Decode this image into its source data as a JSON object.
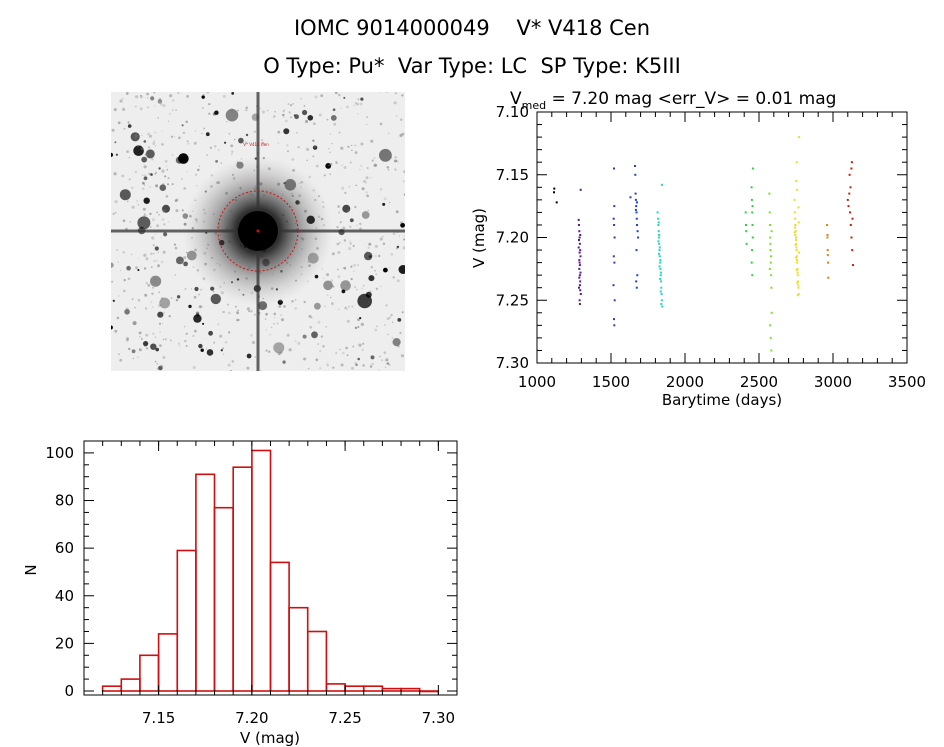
{
  "header": {
    "line1": "IOMC 9014000049    V* V418 Cen",
    "line2": "O Type: Pu*  Var Type: LC  SP Type: K5III"
  },
  "stamp": {
    "target_label": "V* V418 Cen"
  },
  "chart_data": [
    {
      "type": "scatter",
      "title_prefix": "V",
      "title_sub": "med",
      "title_rest": " = 7.20 mag <err_V> = 0.01 mag",
      "xlabel": "Barytime (days)",
      "ylabel": "V (mag)",
      "xlim": [
        1000,
        3500
      ],
      "ylim": [
        7.3,
        7.1
      ],
      "y_inverted": true,
      "xticks": [
        "1000",
        "1500",
        "2000",
        "2500",
        "3000",
        "3500"
      ],
      "yticks": [
        "7.10",
        "7.15",
        "7.20",
        "7.25",
        "7.30"
      ],
      "grid": false,
      "series": [
        {
          "color": "#000000",
          "x": [
            1115,
            1117,
            1133
          ],
          "y": [
            7.164,
            7.161,
            7.172
          ]
        },
        {
          "color": "#5a1a9a",
          "x": [
            1282,
            1284,
            1286,
            1288,
            1290,
            1292,
            1294,
            1288,
            1286,
            1290,
            1292,
            1284,
            1296,
            1288,
            1290,
            1286,
            1282,
            1294,
            1292,
            1290,
            1288,
            1286,
            1284,
            1292,
            1290,
            1295
          ],
          "y": [
            7.186,
            7.19,
            7.195,
            7.2,
            7.205,
            7.21,
            7.215,
            7.22,
            7.225,
            7.23,
            7.235,
            7.24,
            7.245,
            7.25,
            7.253,
            7.218,
            7.208,
            7.228,
            7.198,
            7.238,
            7.212,
            7.232,
            7.202,
            7.242,
            7.222,
            7.162
          ]
        },
        {
          "color": "#4b2fb0",
          "x": [
            1520,
            1522,
            1518,
            1521,
            1524,
            1519,
            1523,
            1517,
            1525,
            1520,
            1522
          ],
          "y": [
            7.145,
            7.175,
            7.185,
            7.19,
            7.2,
            7.215,
            7.22,
            7.238,
            7.25,
            7.265,
            7.27
          ]
        },
        {
          "color": "#2040d0",
          "x": [
            1632,
            1662,
            1664,
            1666,
            1668,
            1670,
            1672,
            1674,
            1676,
            1680,
            1683,
            1672,
            1678,
            1670,
            1674,
            1668,
            1676
          ],
          "y": [
            7.168,
            7.143,
            7.15,
            7.165,
            7.17,
            7.175,
            7.18,
            7.185,
            7.19,
            7.195,
            7.2,
            7.21,
            7.23,
            7.235,
            7.24,
            7.178,
            7.172
          ]
        },
        {
          "color": "#20d8c0",
          "x": [
            1815,
            1818,
            1820,
            1822,
            1824,
            1826,
            1828,
            1830,
            1832,
            1834,
            1836,
            1838,
            1840,
            1842,
            1844,
            1846,
            1820,
            1824,
            1828,
            1832,
            1836,
            1840,
            1844,
            1826,
            1830,
            1834,
            1838,
            1822
          ],
          "y": [
            7.18,
            7.185,
            7.19,
            7.195,
            7.2,
            7.205,
            7.21,
            7.215,
            7.22,
            7.225,
            7.23,
            7.235,
            7.24,
            7.245,
            7.25,
            7.255,
            7.203,
            7.213,
            7.223,
            7.233,
            7.243,
            7.253,
            7.158,
            7.198,
            7.208,
            7.218,
            7.228,
            7.188
          ]
        },
        {
          "color": "#30d040",
          "x": [
            2410,
            2412,
            2414,
            2416,
            2450,
            2452,
            2454,
            2456,
            2458,
            2453,
            2451,
            2455,
            2457,
            2459
          ],
          "y": [
            7.18,
            7.19,
            7.195,
            7.205,
            7.16,
            7.17,
            7.18,
            7.19,
            7.2,
            7.21,
            7.22,
            7.23,
            7.175,
            7.145
          ]
        },
        {
          "color": "#80e020",
          "x": [
            2570,
            2572,
            2574,
            2576,
            2578,
            2580,
            2582,
            2584,
            2586,
            2575,
            2579,
            2583,
            2577,
            2581,
            2585,
            2573
          ],
          "y": [
            7.165,
            7.18,
            7.19,
            7.2,
            7.21,
            7.22,
            7.23,
            7.24,
            7.26,
            7.27,
            7.28,
            7.29,
            7.205,
            7.215,
            7.195,
            7.225
          ]
        },
        {
          "color": "#e8e020",
          "x": [
            2740,
            2742,
            2744,
            2746,
            2748,
            2750,
            2752,
            2754,
            2756,
            2758,
            2760,
            2762,
            2764,
            2766,
            2768,
            2770,
            2745,
            2749,
            2753,
            2757,
            2761,
            2765,
            2769,
            2743,
            2747,
            2751,
            2755,
            2759,
            2763,
            2767,
            2741,
            2771,
            2755,
            2752,
            2758
          ],
          "y": [
            7.17,
            7.18,
            7.185,
            7.19,
            7.195,
            7.2,
            7.205,
            7.21,
            7.215,
            7.22,
            7.225,
            7.23,
            7.235,
            7.24,
            7.245,
            7.212,
            7.198,
            7.202,
            7.208,
            7.218,
            7.228,
            7.238,
            7.188,
            7.192,
            7.206,
            7.216,
            7.226,
            7.236,
            7.246,
            7.176,
            7.196,
            7.12,
            7.14,
            7.155,
            7.162
          ]
        },
        {
          "color": "#e08010",
          "x": [
            2960,
            2962,
            2964,
            2966,
            2968,
            2963,
            2965
          ],
          "y": [
            7.19,
            7.2,
            7.21,
            7.22,
            7.232,
            7.198,
            7.214
          ]
        },
        {
          "color": "#c02010",
          "x": [
            3100,
            3105,
            3110,
            3115,
            3120,
            3125,
            3130,
            3135,
            3112,
            3118,
            3124,
            3128,
            3132
          ],
          "y": [
            7.17,
            7.175,
            7.165,
            7.18,
            7.19,
            7.2,
            7.21,
            7.222,
            7.15,
            7.16,
            7.145,
            7.14,
            7.185
          ]
        }
      ]
    },
    {
      "type": "bar",
      "xlabel": "V (mag)",
      "ylabel": "N",
      "xlim": [
        7.11,
        7.31
      ],
      "ylim": [
        0,
        105
      ],
      "xticks": [
        "7.15",
        "7.20",
        "7.25",
        "7.30"
      ],
      "yticks": [
        "0",
        "20",
        "40",
        "60",
        "80",
        "100"
      ],
      "bin_width": 0.01,
      "bin_starts": [
        7.12,
        7.13,
        7.14,
        7.15,
        7.16,
        7.17,
        7.18,
        7.19,
        7.2,
        7.21,
        7.22,
        7.23,
        7.24,
        7.25,
        7.26,
        7.27,
        7.28,
        7.29
      ],
      "values": [
        2,
        5,
        15,
        24,
        59,
        91,
        77,
        94,
        101,
        54,
        35,
        25,
        3,
        2,
        2,
        1,
        1,
        0
      ],
      "bar_color": "#d01010",
      "grid": false
    }
  ]
}
